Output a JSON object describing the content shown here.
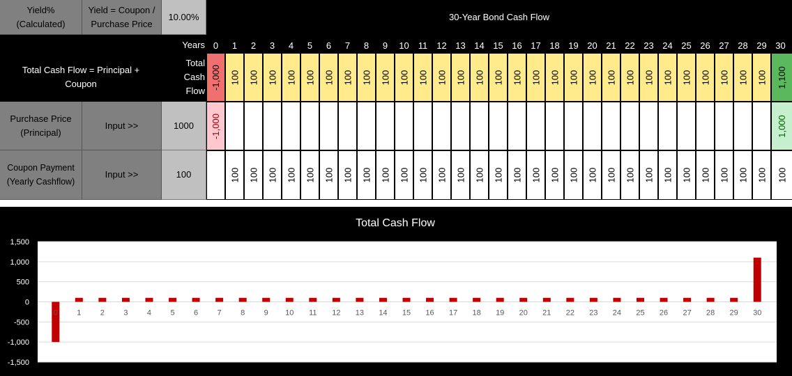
{
  "sheet": {
    "yield_label": "Yield% (Calculated)",
    "yield_formula": "Yield = Coupon / Purchase Price",
    "yield_value": "10.00%",
    "title": "30-Year Bond Cash Flow",
    "years_label": "Years",
    "total_formula": "Total Cash Flow = Principal + Coupon",
    "total_label": "Total Cash Flow",
    "purchase_label": "Purchase Price (Principal)",
    "purchase_input_label": "Input >>",
    "purchase_value": "1000",
    "coupon_label": "Coupon Payment (Yearly Cashflow)",
    "coupon_input_label": "Input >>",
    "coupon_value": "100",
    "years": [
      "0",
      "1",
      "2",
      "3",
      "4",
      "5",
      "6",
      "7",
      "8",
      "9",
      "10",
      "11",
      "12",
      "13",
      "14",
      "15",
      "16",
      "17",
      "18",
      "19",
      "20",
      "21",
      "22",
      "23",
      "24",
      "25",
      "26",
      "27",
      "28",
      "29",
      "30"
    ],
    "total_row": [
      "-1,000",
      "100",
      "100",
      "100",
      "100",
      "100",
      "100",
      "100",
      "100",
      "100",
      "100",
      "100",
      "100",
      "100",
      "100",
      "100",
      "100",
      "100",
      "100",
      "100",
      "100",
      "100",
      "100",
      "100",
      "100",
      "100",
      "100",
      "100",
      "100",
      "100",
      "1,100"
    ],
    "principal_row": [
      "-1,000",
      "",
      "",
      "",
      "",
      "",
      "",
      "",
      "",
      "",
      "",
      "",
      "",
      "",
      "",
      "",
      "",
      "",
      "",
      "",
      "",
      "",
      "",
      "",
      "",
      "",
      "",
      "",
      "",
      "",
      "1,000"
    ],
    "coupon_row": [
      "",
      "100",
      "100",
      "100",
      "100",
      "100",
      "100",
      "100",
      "100",
      "100",
      "100",
      "100",
      "100",
      "100",
      "100",
      "100",
      "100",
      "100",
      "100",
      "100",
      "100",
      "100",
      "100",
      "100",
      "100",
      "100",
      "100",
      "100",
      "100",
      "100",
      "100"
    ]
  },
  "colors": {
    "total_normal": "#ffeb8c",
    "total_negative": "#f07070",
    "total_final": "#5cb85c",
    "principal_negative": "#ffc7ce",
    "principal_positive": "#c6efce",
    "bar": "#c00000"
  },
  "chart_data": {
    "type": "bar",
    "title": "Total Cash Flow",
    "categories": [
      "0",
      "1",
      "2",
      "3",
      "4",
      "5",
      "6",
      "7",
      "8",
      "9",
      "10",
      "11",
      "12",
      "13",
      "14",
      "15",
      "16",
      "17",
      "18",
      "19",
      "20",
      "21",
      "22",
      "23",
      "24",
      "25",
      "26",
      "27",
      "28",
      "29",
      "30"
    ],
    "values": [
      -1000,
      100,
      100,
      100,
      100,
      100,
      100,
      100,
      100,
      100,
      100,
      100,
      100,
      100,
      100,
      100,
      100,
      100,
      100,
      100,
      100,
      100,
      100,
      100,
      100,
      100,
      100,
      100,
      100,
      100,
      1100
    ],
    "ylim": [
      -1500,
      1500
    ],
    "yticks": [
      "1,500",
      "1,000",
      "500",
      "0",
      "-500",
      "-1,000",
      "-1,500"
    ],
    "ytick_values": [
      1500,
      1000,
      500,
      0,
      -500,
      -1000,
      -1500
    ],
    "grid": true
  }
}
